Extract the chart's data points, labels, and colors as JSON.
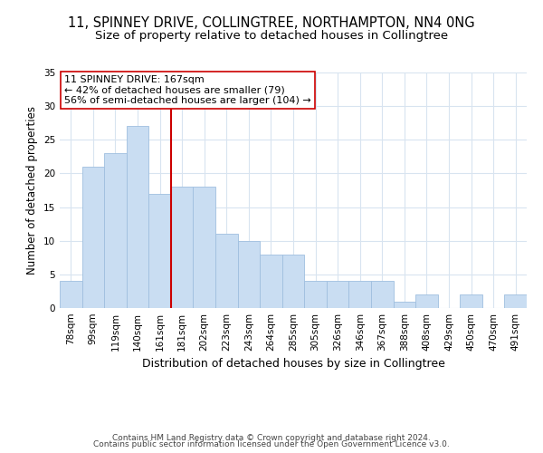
{
  "title": "11, SPINNEY DRIVE, COLLINGTREE, NORTHAMPTON, NN4 0NG",
  "subtitle": "Size of property relative to detached houses in Collingtree",
  "xlabel": "Distribution of detached houses by size in Collingtree",
  "ylabel": "Number of detached properties",
  "bar_labels": [
    "78sqm",
    "99sqm",
    "119sqm",
    "140sqm",
    "161sqm",
    "181sqm",
    "202sqm",
    "223sqm",
    "243sqm",
    "264sqm",
    "285sqm",
    "305sqm",
    "326sqm",
    "346sqm",
    "367sqm",
    "388sqm",
    "408sqm",
    "429sqm",
    "450sqm",
    "470sqm",
    "491sqm"
  ],
  "bar_values": [
    4,
    21,
    23,
    27,
    17,
    18,
    18,
    11,
    10,
    8,
    8,
    4,
    4,
    4,
    4,
    1,
    2,
    0,
    2,
    0,
    2
  ],
  "bar_color": "#c9ddf2",
  "bar_edge_color": "#9fbfdf",
  "vline_x_idx": 4.5,
  "vline_color": "#cc0000",
  "annotation_line1": "11 SPINNEY DRIVE: 167sqm",
  "annotation_line2": "← 42% of detached houses are smaller (79)",
  "annotation_line3": "56% of semi-detached houses are larger (104) →",
  "annotation_box_facecolor": "#ffffff",
  "annotation_box_edgecolor": "#cc0000",
  "ylim": [
    0,
    35
  ],
  "yticks": [
    0,
    5,
    10,
    15,
    20,
    25,
    30,
    35
  ],
  "footer_line1": "Contains HM Land Registry data © Crown copyright and database right 2024.",
  "footer_line2": "Contains public sector information licensed under the Open Government Licence v3.0.",
  "bg_color": "#ffffff",
  "grid_color": "#d8e4f0",
  "title_fontsize": 10.5,
  "subtitle_fontsize": 9.5,
  "xlabel_fontsize": 9,
  "ylabel_fontsize": 8.5,
  "tick_fontsize": 7.5,
  "annotation_fontsize": 8,
  "footer_fontsize": 6.5
}
